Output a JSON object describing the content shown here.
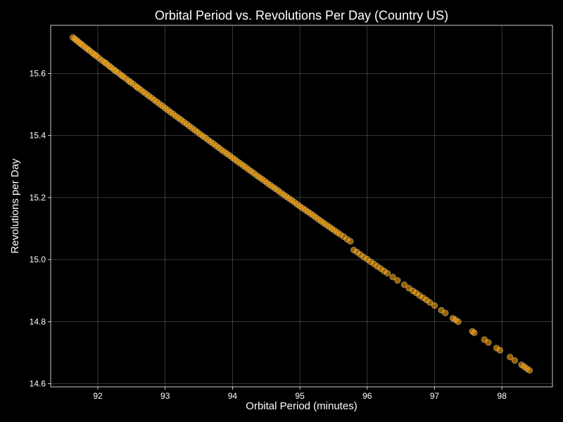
{
  "chart_data": {
    "type": "scatter",
    "title": "Orbital Period vs. Revolutions Per Day (Country US)",
    "xlabel": "Orbital Period (minutes)",
    "ylabel": "Revolutions per Day",
    "xlim": [
      91.3,
      98.75
    ],
    "ylim": [
      14.59,
      15.755
    ],
    "xticks": [
      92,
      93,
      94,
      95,
      96,
      97,
      98
    ],
    "xtick_labels": [
      "92",
      "93",
      "94",
      "95",
      "96",
      "97",
      "98"
    ],
    "yticks": [
      14.6,
      14.8,
      15.0,
      15.2,
      15.4,
      15.6
    ],
    "ytick_labels": [
      "14.6",
      "14.8",
      "15.0",
      "15.2",
      "15.4",
      "15.6"
    ],
    "grid": true,
    "legend": "none",
    "colors": {
      "background": "#000000",
      "marker": "#ffa500",
      "marker_edge": "#ffffff",
      "text": "#ffffff"
    },
    "x": [
      91.63,
      91.66,
      91.69,
      91.72,
      91.75,
      91.78,
      91.82,
      91.85,
      91.88,
      91.92,
      91.95,
      91.98,
      92.02,
      92.06,
      92.1,
      92.13,
      92.17,
      92.2,
      92.24,
      92.27,
      92.31,
      92.35,
      92.38,
      92.42,
      92.46,
      92.49,
      92.53,
      92.57,
      92.6,
      92.64,
      92.68,
      92.72,
      92.76,
      92.8,
      92.84,
      92.88,
      92.92,
      92.96,
      93.0,
      93.04,
      93.08,
      93.12,
      93.16,
      93.2,
      93.24,
      93.28,
      93.32,
      93.36,
      93.4,
      93.44,
      93.48,
      93.52,
      93.56,
      93.6,
      93.64,
      93.68,
      93.72,
      93.76,
      93.8,
      93.84,
      93.88,
      93.92,
      93.96,
      94.0,
      94.04,
      94.08,
      94.12,
      94.16,
      94.2,
      94.24,
      94.28,
      94.32,
      94.36,
      94.4,
      94.44,
      94.48,
      94.52,
      94.56,
      94.6,
      94.64,
      94.68,
      94.72,
      94.76,
      94.8,
      94.84,
      94.88,
      94.92,
      94.96,
      95.0,
      95.04,
      95.08,
      95.12,
      95.16,
      95.2,
      95.24,
      95.28,
      95.32,
      95.36,
      95.4,
      95.44,
      95.48,
      95.52,
      95.56,
      95.6,
      95.65,
      95.7,
      95.75,
      95.8,
      95.85,
      95.9,
      95.95,
      96.0,
      96.05,
      96.1,
      96.15,
      96.2,
      96.25,
      96.3,
      96.38,
      96.45,
      96.55,
      96.62,
      96.68,
      96.73,
      96.78,
      96.83,
      96.88,
      96.93,
      97.0,
      97.1,
      97.16,
      97.27,
      97.31,
      97.35,
      97.56,
      97.59,
      97.74,
      97.8,
      97.92,
      97.97,
      98.12,
      98.19,
      98.29,
      98.33,
      98.37,
      98.41
    ],
    "y": [
      15.716,
      15.711,
      15.706,
      15.7,
      15.695,
      15.69,
      15.683,
      15.678,
      15.673,
      15.666,
      15.661,
      15.656,
      15.649,
      15.642,
      15.636,
      15.631,
      15.624,
      15.619,
      15.612,
      15.607,
      15.601,
      15.594,
      15.589,
      15.583,
      15.576,
      15.571,
      15.565,
      15.558,
      15.553,
      15.547,
      15.54,
      15.534,
      15.527,
      15.521,
      15.514,
      15.508,
      15.501,
      15.495,
      15.488,
      15.482,
      15.475,
      15.469,
      15.462,
      15.456,
      15.45,
      15.443,
      15.437,
      15.43,
      15.424,
      15.417,
      15.411,
      15.404,
      15.398,
      15.392,
      15.385,
      15.379,
      15.373,
      15.366,
      15.36,
      15.353,
      15.347,
      15.341,
      15.335,
      15.328,
      15.322,
      15.315,
      15.309,
      15.303,
      15.297,
      15.29,
      15.284,
      15.278,
      15.271,
      15.265,
      15.259,
      15.253,
      15.246,
      15.24,
      15.234,
      15.228,
      15.222,
      15.215,
      15.209,
      15.203,
      15.197,
      15.191,
      15.185,
      15.178,
      15.172,
      15.166,
      15.16,
      15.154,
      15.148,
      15.142,
      15.136,
      15.129,
      15.123,
      15.117,
      15.111,
      15.105,
      15.099,
      15.093,
      15.087,
      15.081,
      15.074,
      15.066,
      15.059,
      15.031,
      15.024,
      15.016,
      15.008,
      15.001,
      14.993,
      14.986,
      14.978,
      14.971,
      14.963,
      14.956,
      14.944,
      14.933,
      14.919,
      14.908,
      14.899,
      14.892,
      14.884,
      14.877,
      14.87,
      14.862,
      14.852,
      14.837,
      14.828,
      14.811,
      14.806,
      14.8,
      14.769,
      14.764,
      14.742,
      14.733,
      14.715,
      14.708,
      14.686,
      14.675,
      14.661,
      14.655,
      14.649,
      14.643
    ]
  }
}
